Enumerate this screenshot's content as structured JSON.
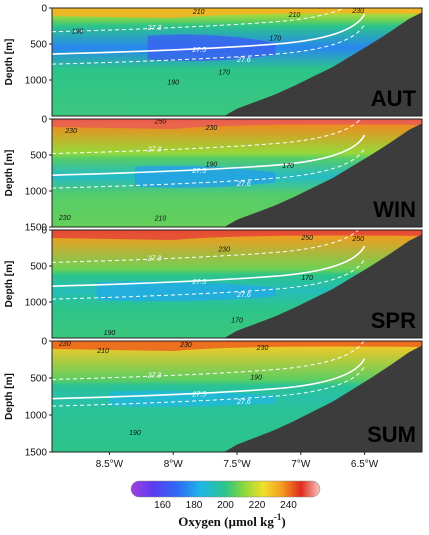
{
  "chart_data": {
    "type": "heatmap",
    "title": "",
    "xlabel": "",
    "ylabel": "Depth [m]",
    "x_ticks": [
      "8.5°W",
      "8°W",
      "7.5°W",
      "7°W",
      "6.5°W"
    ],
    "x_tick_values": [
      -8.5,
      -8.0,
      -7.5,
      -7.0,
      -6.5
    ],
    "xlim": [
      -8.95,
      -6.05
    ],
    "y_ticks": [
      "0",
      "500",
      "1000",
      "1500"
    ],
    "y_tick_values": [
      0,
      500,
      1000,
      1500
    ],
    "ylim": [
      0,
      1500
    ],
    "colorbar": {
      "label": "Oxygen (µmol kg",
      "label_sup": "-1",
      "label_end": ")",
      "ticks": [
        "160",
        "180",
        "200",
        "220",
        "240"
      ],
      "tick_values": [
        160,
        180,
        200,
        220,
        240
      ],
      "range": [
        140,
        260
      ]
    },
    "seafloor": {
      "lon": [
        -7.6,
        -7.5,
        -7.35,
        -7.2,
        -7.05,
        -6.9,
        -6.75,
        -6.6,
        -6.45,
        -6.3,
        -6.15,
        -6.05
      ],
      "depth": [
        1500,
        1400,
        1300,
        1200,
        1080,
        950,
        820,
        660,
        500,
        330,
        150,
        60
      ]
    },
    "panels": [
      {
        "season": "AUT",
        "max_depth": 1000,
        "surface_oxygen": 218,
        "water_oxygen": 200,
        "core": {
          "lon_start": -8.2,
          "depth_center": 550,
          "thickness": 600,
          "oxygen": 165
        },
        "isopycnals": [
          {
            "label": "27.3",
            "depth": 330
          },
          {
            "label": "27.5",
            "depth": 640
          },
          {
            "label": "27.6",
            "depth": 780
          }
        ],
        "oxygen_labels": [
          {
            "text": "210",
            "lon": -7.8,
            "depth": 40
          },
          {
            "text": "210",
            "lon": -7.05,
            "depth": 80
          },
          {
            "text": "230",
            "lon": -6.55,
            "depth": 30
          },
          {
            "text": "190",
            "lon": -8.75,
            "depth": 310
          },
          {
            "text": "170",
            "lon": -7.2,
            "depth": 410
          },
          {
            "text": "170",
            "lon": -7.6,
            "depth": 880
          },
          {
            "text": "190",
            "lon": -8.0,
            "depth": 1020
          }
        ]
      },
      {
        "season": "WIN",
        "max_depth": 1500,
        "surface_oxygen": 238,
        "water_oxygen": 205,
        "core": {
          "lon_start": -8.3,
          "depth_center": 800,
          "thickness": 500,
          "oxygen": 180
        },
        "isopycnals": [
          {
            "label": "27.3",
            "depth": 480
          },
          {
            "label": "27.5",
            "depth": 780
          },
          {
            "label": "27.6",
            "depth": 960
          }
        ],
        "oxygen_labels": [
          {
            "text": "230",
            "lon": -8.8,
            "depth": 150
          },
          {
            "text": "250",
            "lon": -8.1,
            "depth": 20
          },
          {
            "text": "230",
            "lon": -7.7,
            "depth": 110
          },
          {
            "text": "190",
            "lon": -7.7,
            "depth": 620
          },
          {
            "text": "170",
            "lon": -7.1,
            "depth": 640
          },
          {
            "text": "230",
            "lon": -8.85,
            "depth": 1360
          },
          {
            "text": "210",
            "lon": -8.1,
            "depth": 1370
          }
        ]
      },
      {
        "season": "SPR",
        "max_depth": 1000,
        "surface_oxygen": 236,
        "water_oxygen": 200,
        "core": {
          "lon_start": -8.6,
          "depth_center": 850,
          "thickness": 450,
          "oxygen": 182
        },
        "isopycnals": [
          {
            "label": "27.3",
            "depth": 450
          },
          {
            "label": "27.5",
            "depth": 780
          },
          {
            "label": "27.6",
            "depth": 960
          }
        ],
        "oxygen_labels": [
          {
            "text": "230",
            "lon": -7.6,
            "depth": 260
          },
          {
            "text": "250",
            "lon": -6.95,
            "depth": 100
          },
          {
            "text": "250",
            "lon": -6.55,
            "depth": 110
          },
          {
            "text": "170",
            "lon": -6.95,
            "depth": 650
          },
          {
            "text": "170",
            "lon": -7.5,
            "depth": 1240
          },
          {
            "text": "190",
            "lon": -8.5,
            "depth": 1420
          }
        ]
      },
      {
        "season": "SUM",
        "max_depth": 1000,
        "surface_oxygen": 228,
        "water_oxygen": 198,
        "core": {
          "lon_start": -8.5,
          "depth_center": 780,
          "thickness": 350,
          "oxygen": 185
        },
        "isopycnals": [
          {
            "label": "27.3",
            "depth": 520
          },
          {
            "label": "27.5",
            "depth": 780
          },
          {
            "label": "27.6",
            "depth": 880
          }
        ],
        "oxygen_labels": [
          {
            "text": "230",
            "lon": -8.85,
            "depth": 30
          },
          {
            "text": "210",
            "lon": -8.55,
            "depth": 120
          },
          {
            "text": "230",
            "lon": -7.9,
            "depth": 40
          },
          {
            "text": "230",
            "lon": -7.3,
            "depth": 80
          },
          {
            "text": "190",
            "lon": -7.35,
            "depth": 480
          },
          {
            "text": "190",
            "lon": -8.3,
            "depth": 1230
          }
        ]
      }
    ]
  }
}
